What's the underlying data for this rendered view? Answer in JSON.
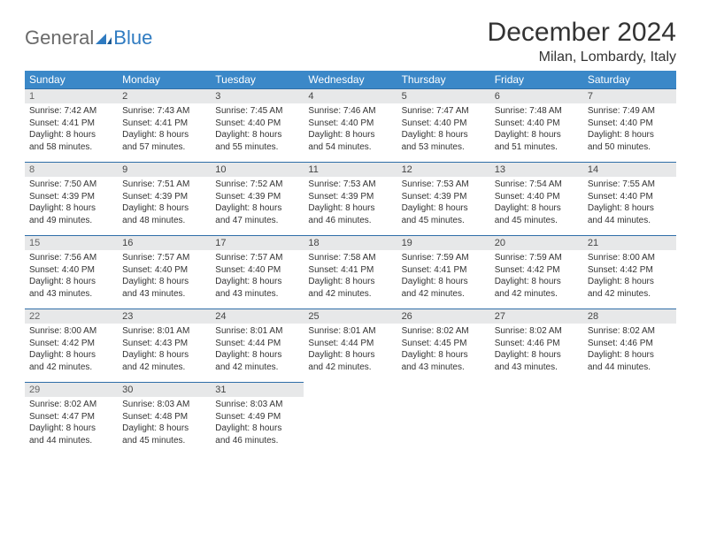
{
  "brand": {
    "part1": "General",
    "part2": "Blue"
  },
  "title": "December 2024",
  "location": "Milan, Lombardy, Italy",
  "colors": {
    "header_bg": "#3b88c8",
    "header_text": "#ffffff",
    "daynum_bg": "#e7e8e9",
    "rule_color": "#2f6ea8",
    "text": "#333333",
    "logo_grey": "#6a6a6a",
    "logo_blue": "#2f7bc1"
  },
  "day_names": [
    "Sunday",
    "Monday",
    "Tuesday",
    "Wednesday",
    "Thursday",
    "Friday",
    "Saturday"
  ],
  "weeks": [
    {
      "nums": [
        "1",
        "2",
        "3",
        "4",
        "5",
        "6",
        "7"
      ],
      "cells": [
        {
          "sunrise": "Sunrise: 7:42 AM",
          "sunset": "Sunset: 4:41 PM",
          "day1": "Daylight: 8 hours",
          "day2": "and 58 minutes."
        },
        {
          "sunrise": "Sunrise: 7:43 AM",
          "sunset": "Sunset: 4:41 PM",
          "day1": "Daylight: 8 hours",
          "day2": "and 57 minutes."
        },
        {
          "sunrise": "Sunrise: 7:45 AM",
          "sunset": "Sunset: 4:40 PM",
          "day1": "Daylight: 8 hours",
          "day2": "and 55 minutes."
        },
        {
          "sunrise": "Sunrise: 7:46 AM",
          "sunset": "Sunset: 4:40 PM",
          "day1": "Daylight: 8 hours",
          "day2": "and 54 minutes."
        },
        {
          "sunrise": "Sunrise: 7:47 AM",
          "sunset": "Sunset: 4:40 PM",
          "day1": "Daylight: 8 hours",
          "day2": "and 53 minutes."
        },
        {
          "sunrise": "Sunrise: 7:48 AM",
          "sunset": "Sunset: 4:40 PM",
          "day1": "Daylight: 8 hours",
          "day2": "and 51 minutes."
        },
        {
          "sunrise": "Sunrise: 7:49 AM",
          "sunset": "Sunset: 4:40 PM",
          "day1": "Daylight: 8 hours",
          "day2": "and 50 minutes."
        }
      ]
    },
    {
      "nums": [
        "8",
        "9",
        "10",
        "11",
        "12",
        "13",
        "14"
      ],
      "cells": [
        {
          "sunrise": "Sunrise: 7:50 AM",
          "sunset": "Sunset: 4:39 PM",
          "day1": "Daylight: 8 hours",
          "day2": "and 49 minutes."
        },
        {
          "sunrise": "Sunrise: 7:51 AM",
          "sunset": "Sunset: 4:39 PM",
          "day1": "Daylight: 8 hours",
          "day2": "and 48 minutes."
        },
        {
          "sunrise": "Sunrise: 7:52 AM",
          "sunset": "Sunset: 4:39 PM",
          "day1": "Daylight: 8 hours",
          "day2": "and 47 minutes."
        },
        {
          "sunrise": "Sunrise: 7:53 AM",
          "sunset": "Sunset: 4:39 PM",
          "day1": "Daylight: 8 hours",
          "day2": "and 46 minutes."
        },
        {
          "sunrise": "Sunrise: 7:53 AM",
          "sunset": "Sunset: 4:39 PM",
          "day1": "Daylight: 8 hours",
          "day2": "and 45 minutes."
        },
        {
          "sunrise": "Sunrise: 7:54 AM",
          "sunset": "Sunset: 4:40 PM",
          "day1": "Daylight: 8 hours",
          "day2": "and 45 minutes."
        },
        {
          "sunrise": "Sunrise: 7:55 AM",
          "sunset": "Sunset: 4:40 PM",
          "day1": "Daylight: 8 hours",
          "day2": "and 44 minutes."
        }
      ]
    },
    {
      "nums": [
        "15",
        "16",
        "17",
        "18",
        "19",
        "20",
        "21"
      ],
      "cells": [
        {
          "sunrise": "Sunrise: 7:56 AM",
          "sunset": "Sunset: 4:40 PM",
          "day1": "Daylight: 8 hours",
          "day2": "and 43 minutes."
        },
        {
          "sunrise": "Sunrise: 7:57 AM",
          "sunset": "Sunset: 4:40 PM",
          "day1": "Daylight: 8 hours",
          "day2": "and 43 minutes."
        },
        {
          "sunrise": "Sunrise: 7:57 AM",
          "sunset": "Sunset: 4:40 PM",
          "day1": "Daylight: 8 hours",
          "day2": "and 43 minutes."
        },
        {
          "sunrise": "Sunrise: 7:58 AM",
          "sunset": "Sunset: 4:41 PM",
          "day1": "Daylight: 8 hours",
          "day2": "and 42 minutes."
        },
        {
          "sunrise": "Sunrise: 7:59 AM",
          "sunset": "Sunset: 4:41 PM",
          "day1": "Daylight: 8 hours",
          "day2": "and 42 minutes."
        },
        {
          "sunrise": "Sunrise: 7:59 AM",
          "sunset": "Sunset: 4:42 PM",
          "day1": "Daylight: 8 hours",
          "day2": "and 42 minutes."
        },
        {
          "sunrise": "Sunrise: 8:00 AM",
          "sunset": "Sunset: 4:42 PM",
          "day1": "Daylight: 8 hours",
          "day2": "and 42 minutes."
        }
      ]
    },
    {
      "nums": [
        "22",
        "23",
        "24",
        "25",
        "26",
        "27",
        "28"
      ],
      "cells": [
        {
          "sunrise": "Sunrise: 8:00 AM",
          "sunset": "Sunset: 4:42 PM",
          "day1": "Daylight: 8 hours",
          "day2": "and 42 minutes."
        },
        {
          "sunrise": "Sunrise: 8:01 AM",
          "sunset": "Sunset: 4:43 PM",
          "day1": "Daylight: 8 hours",
          "day2": "and 42 minutes."
        },
        {
          "sunrise": "Sunrise: 8:01 AM",
          "sunset": "Sunset: 4:44 PM",
          "day1": "Daylight: 8 hours",
          "day2": "and 42 minutes."
        },
        {
          "sunrise": "Sunrise: 8:01 AM",
          "sunset": "Sunset: 4:44 PM",
          "day1": "Daylight: 8 hours",
          "day2": "and 42 minutes."
        },
        {
          "sunrise": "Sunrise: 8:02 AM",
          "sunset": "Sunset: 4:45 PM",
          "day1": "Daylight: 8 hours",
          "day2": "and 43 minutes."
        },
        {
          "sunrise": "Sunrise: 8:02 AM",
          "sunset": "Sunset: 4:46 PM",
          "day1": "Daylight: 8 hours",
          "day2": "and 43 minutes."
        },
        {
          "sunrise": "Sunrise: 8:02 AM",
          "sunset": "Sunset: 4:46 PM",
          "day1": "Daylight: 8 hours",
          "day2": "and 44 minutes."
        }
      ]
    },
    {
      "nums": [
        "29",
        "30",
        "31",
        "",
        "",
        "",
        ""
      ],
      "cells": [
        {
          "sunrise": "Sunrise: 8:02 AM",
          "sunset": "Sunset: 4:47 PM",
          "day1": "Daylight: 8 hours",
          "day2": "and 44 minutes."
        },
        {
          "sunrise": "Sunrise: 8:03 AM",
          "sunset": "Sunset: 4:48 PM",
          "day1": "Daylight: 8 hours",
          "day2": "and 45 minutes."
        },
        {
          "sunrise": "Sunrise: 8:03 AM",
          "sunset": "Sunset: 4:49 PM",
          "day1": "Daylight: 8 hours",
          "day2": "and 46 minutes."
        },
        null,
        null,
        null,
        null
      ]
    }
  ]
}
